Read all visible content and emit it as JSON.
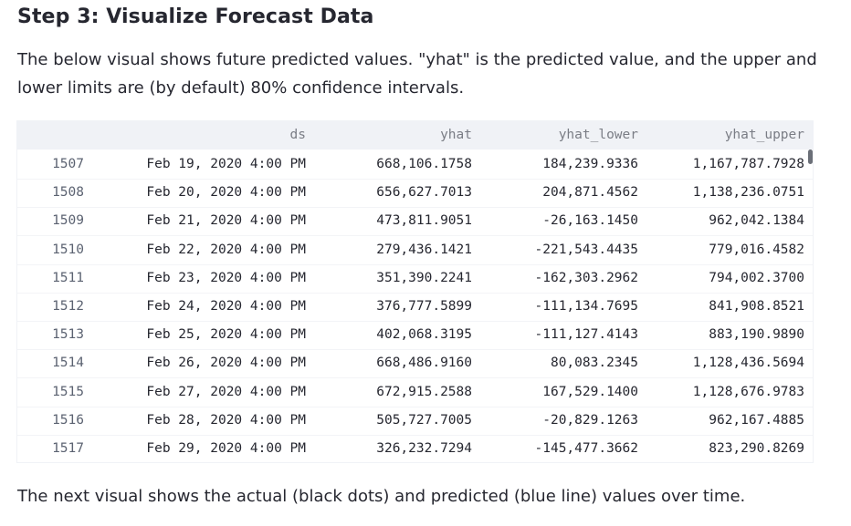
{
  "heading": "Step 3: Visualize Forecast Data",
  "description_line1": "The below visual shows future predicted values. \"yhat\" is the predicted value, and the upper and",
  "description_line2": "lower limits are (by default) 80% confidence intervals.",
  "table": {
    "columns": [
      "",
      "ds",
      "yhat",
      "yhat_lower",
      "yhat_upper"
    ],
    "rows": [
      {
        "index": "1507",
        "ds": "Feb 19, 2020 4:00 PM",
        "yhat": "668,106.1758",
        "yhat_lower": "184,239.9336",
        "yhat_upper": "1,167,787.7928"
      },
      {
        "index": "1508",
        "ds": "Feb 20, 2020 4:00 PM",
        "yhat": "656,627.7013",
        "yhat_lower": "204,871.4562",
        "yhat_upper": "1,138,236.0751"
      },
      {
        "index": "1509",
        "ds": "Feb 21, 2020 4:00 PM",
        "yhat": "473,811.9051",
        "yhat_lower": "-26,163.1450",
        "yhat_upper": "962,042.1384"
      },
      {
        "index": "1510",
        "ds": "Feb 22, 2020 4:00 PM",
        "yhat": "279,436.1421",
        "yhat_lower": "-221,543.4435",
        "yhat_upper": "779,016.4582"
      },
      {
        "index": "1511",
        "ds": "Feb 23, 2020 4:00 PM",
        "yhat": "351,390.2241",
        "yhat_lower": "-162,303.2962",
        "yhat_upper": "794,002.3700"
      },
      {
        "index": "1512",
        "ds": "Feb 24, 2020 4:00 PM",
        "yhat": "376,777.5899",
        "yhat_lower": "-111,134.7695",
        "yhat_upper": "841,908.8521"
      },
      {
        "index": "1513",
        "ds": "Feb 25, 2020 4:00 PM",
        "yhat": "402,068.3195",
        "yhat_lower": "-111,127.4143",
        "yhat_upper": "883,190.9890"
      },
      {
        "index": "1514",
        "ds": "Feb 26, 2020 4:00 PM",
        "yhat": "668,486.9160",
        "yhat_lower": "80,083.2345",
        "yhat_upper": "1,128,436.5694"
      },
      {
        "index": "1515",
        "ds": "Feb 27, 2020 4:00 PM",
        "yhat": "672,915.2588",
        "yhat_lower": "167,529.1400",
        "yhat_upper": "1,128,676.9783"
      },
      {
        "index": "1516",
        "ds": "Feb 28, 2020 4:00 PM",
        "yhat": "505,727.7005",
        "yhat_lower": "-20,829.1263",
        "yhat_upper": "962,167.4885"
      },
      {
        "index": "1517",
        "ds": "Feb 29, 2020 4:00 PM",
        "yhat": "326,232.7294",
        "yhat_lower": "-145,477.3662",
        "yhat_upper": "823,290.8269"
      }
    ]
  },
  "footer": "The next visual shows the actual (black dots) and predicted (blue line) values over time."
}
